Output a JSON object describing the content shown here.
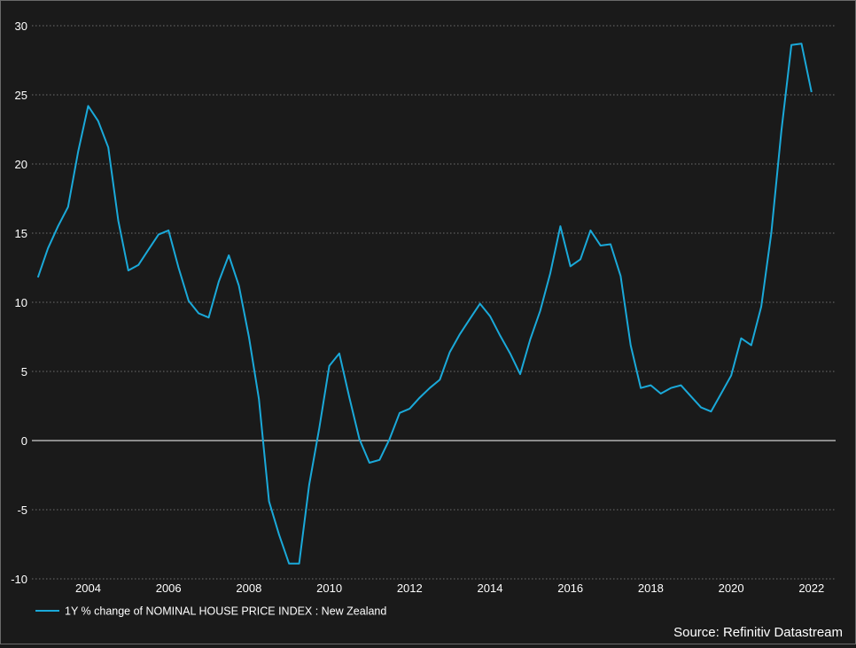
{
  "chart_data": {
    "type": "line",
    "title": "",
    "xlabel": "",
    "ylabel": "",
    "xlim": [
      2002.6,
      2022.6
    ],
    "ylim": [
      -10,
      30
    ],
    "grid": true,
    "legend_position": "bottom-left",
    "background_color": "#1a1a1a",
    "line_color": "#1aa9d9",
    "zero_line_color": "#ffffff",
    "y_ticks": [
      -10,
      -5,
      0,
      5,
      10,
      15,
      20,
      25,
      30
    ],
    "x_ticks": [
      2004,
      2006,
      2008,
      2010,
      2012,
      2014,
      2016,
      2018,
      2020,
      2022
    ],
    "y_tick_labels": [
      "-10",
      "-5",
      "0",
      "5",
      "10",
      "15",
      "20",
      "25",
      "30"
    ],
    "x_tick_labels": [
      "2004",
      "2006",
      "2008",
      "2010",
      "2012",
      "2014",
      "2016",
      "2018",
      "2020",
      "2022"
    ],
    "series": [
      {
        "name": "1Y % change of NOMINAL HOUSE PRICE INDEX : New Zealand",
        "x": [
          2002.75,
          2003.0,
          2003.25,
          2003.5,
          2003.75,
          2004.0,
          2004.25,
          2004.5,
          2004.75,
          2005.0,
          2005.25,
          2005.5,
          2005.75,
          2006.0,
          2006.25,
          2006.5,
          2006.75,
          2007.0,
          2007.25,
          2007.5,
          2007.75,
          2008.0,
          2008.25,
          2008.5,
          2008.75,
          2009.0,
          2009.25,
          2009.5,
          2009.75,
          2010.0,
          2010.25,
          2010.5,
          2010.75,
          2011.0,
          2011.25,
          2011.5,
          2011.75,
          2012.0,
          2012.25,
          2012.5,
          2012.75,
          2013.0,
          2013.25,
          2013.5,
          2013.75,
          2014.0,
          2014.25,
          2014.5,
          2014.75,
          2015.0,
          2015.25,
          2015.5,
          2015.75,
          2016.0,
          2016.25,
          2016.5,
          2016.75,
          2017.0,
          2017.25,
          2017.5,
          2017.75,
          2018.0,
          2018.25,
          2018.5,
          2018.75,
          2019.0,
          2019.25,
          2019.5,
          2019.75,
          2020.0,
          2020.25,
          2020.5,
          2020.75,
          2021.0,
          2021.25,
          2021.5,
          2021.75,
          2022.0
        ],
        "values": [
          11.8,
          13.9,
          15.5,
          16.9,
          20.9,
          24.2,
          23.1,
          21.2,
          15.9,
          12.3,
          12.7,
          13.8,
          14.9,
          15.2,
          12.5,
          10.1,
          9.2,
          8.9,
          11.5,
          13.4,
          11.2,
          7.5,
          3.0,
          -4.4,
          -6.8,
          -8.9,
          -8.9,
          -3.2,
          0.9,
          5.4,
          6.3,
          3.1,
          0.1,
          -1.6,
          -1.4,
          0.1,
          2.0,
          2.3,
          3.1,
          3.8,
          4.4,
          6.4,
          7.7,
          8.8,
          9.9,
          9.0,
          7.6,
          6.3,
          4.8,
          7.3,
          9.4,
          12.1,
          15.5,
          12.6,
          13.1,
          15.2,
          14.1,
          14.2,
          11.9,
          6.9,
          3.8,
          4.0,
          3.4,
          3.8,
          4.0,
          3.2,
          2.4,
          2.1,
          3.4,
          4.7,
          7.4,
          6.9,
          9.7,
          15.0,
          22.4,
          28.6,
          28.7,
          25.2
        ]
      }
    ],
    "source": "Source: Refinitiv Datastream"
  }
}
